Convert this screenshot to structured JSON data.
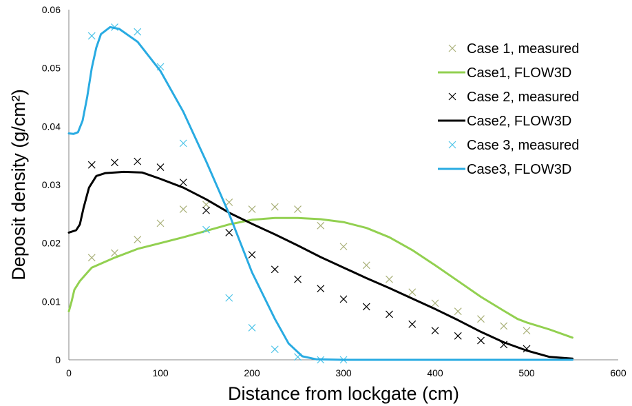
{
  "chart_data": {
    "type": "scatter",
    "xlabel": "Distance from lockgate (cm)",
    "ylabel": "Deposit density (g/cm²)",
    "xlim": [
      0,
      600
    ],
    "ylim": [
      0,
      0.06
    ],
    "x_ticks": [
      "0",
      "100",
      "200",
      "300",
      "400",
      "500",
      "600"
    ],
    "y_ticks": [
      "0",
      "0.01",
      "0.02",
      "0.03",
      "0.04",
      "0.05",
      "0.06"
    ],
    "grid": false,
    "legend_position": "top-right",
    "series": [
      {
        "name": "Case 1, measured",
        "kind": "marker",
        "marker": "x",
        "color": "#a9b078",
        "points": [
          [
            25,
            0.0175
          ],
          [
            50,
            0.0183
          ],
          [
            75,
            0.0206
          ],
          [
            100,
            0.0234
          ],
          [
            125,
            0.0258
          ],
          [
            150,
            0.0266
          ],
          [
            175,
            0.027
          ],
          [
            200,
            0.0258
          ],
          [
            225,
            0.0262
          ],
          [
            250,
            0.0258
          ],
          [
            275,
            0.023
          ],
          [
            300,
            0.0194
          ],
          [
            325,
            0.0162
          ],
          [
            350,
            0.0138
          ],
          [
            375,
            0.0116
          ],
          [
            400,
            0.0097
          ],
          [
            425,
            0.0083
          ],
          [
            450,
            0.007
          ],
          [
            475,
            0.0058
          ],
          [
            500,
            0.005
          ]
        ]
      },
      {
        "name": "Case1, FLOW3D",
        "kind": "line",
        "color": "#92d050",
        "points": [
          [
            0,
            0.0083
          ],
          [
            3,
            0.01
          ],
          [
            6,
            0.012
          ],
          [
            12,
            0.0135
          ],
          [
            25,
            0.0158
          ],
          [
            50,
            0.0175
          ],
          [
            75,
            0.019
          ],
          [
            100,
            0.02
          ],
          [
            125,
            0.021
          ],
          [
            150,
            0.0221
          ],
          [
            175,
            0.0232
          ],
          [
            200,
            0.024
          ],
          [
            225,
            0.0243
          ],
          [
            250,
            0.0243
          ],
          [
            275,
            0.0241
          ],
          [
            300,
            0.0236
          ],
          [
            325,
            0.0226
          ],
          [
            350,
            0.021
          ],
          [
            375,
            0.0188
          ],
          [
            400,
            0.0162
          ],
          [
            425,
            0.0135
          ],
          [
            450,
            0.0108
          ],
          [
            475,
            0.0084
          ],
          [
            490,
            0.007
          ],
          [
            500,
            0.0064
          ],
          [
            525,
            0.0052
          ],
          [
            550,
            0.0038
          ]
        ]
      },
      {
        "name": "Case 2, measured",
        "kind": "marker",
        "marker": "x",
        "color": "#000000",
        "points": [
          [
            25,
            0.0334
          ],
          [
            50,
            0.0338
          ],
          [
            75,
            0.034
          ],
          [
            100,
            0.033
          ],
          [
            125,
            0.0304
          ],
          [
            150,
            0.0256
          ],
          [
            175,
            0.0218
          ],
          [
            200,
            0.018
          ],
          [
            225,
            0.0155
          ],
          [
            250,
            0.0138
          ],
          [
            275,
            0.0122
          ],
          [
            300,
            0.0104
          ],
          [
            325,
            0.0091
          ],
          [
            350,
            0.0078
          ],
          [
            375,
            0.0061
          ],
          [
            400,
            0.005
          ],
          [
            425,
            0.0041
          ],
          [
            450,
            0.0033
          ],
          [
            475,
            0.0026
          ],
          [
            500,
            0.0019
          ]
        ]
      },
      {
        "name": "Case2, FLOW3D",
        "kind": "line",
        "color": "#000000",
        "points": [
          [
            0,
            0.0218
          ],
          [
            8,
            0.0222
          ],
          [
            12,
            0.0232
          ],
          [
            16,
            0.026
          ],
          [
            22,
            0.0295
          ],
          [
            30,
            0.0315
          ],
          [
            40,
            0.032
          ],
          [
            60,
            0.0322
          ],
          [
            80,
            0.0321
          ],
          [
            100,
            0.031
          ],
          [
            125,
            0.0295
          ],
          [
            150,
            0.0275
          ],
          [
            175,
            0.0252
          ],
          [
            200,
            0.0233
          ],
          [
            225,
            0.0215
          ],
          [
            250,
            0.0196
          ],
          [
            275,
            0.0176
          ],
          [
            300,
            0.0158
          ],
          [
            325,
            0.014
          ],
          [
            350,
            0.0123
          ],
          [
            375,
            0.0105
          ],
          [
            400,
            0.0087
          ],
          [
            425,
            0.0068
          ],
          [
            450,
            0.0048
          ],
          [
            475,
            0.003
          ],
          [
            500,
            0.0016
          ],
          [
            525,
            0.0005
          ],
          [
            550,
            0.0002
          ]
        ]
      },
      {
        "name": "Case 3, measured",
        "kind": "marker",
        "marker": "x",
        "color": "#4bc3e8",
        "points": [
          [
            25,
            0.0555
          ],
          [
            50,
            0.057
          ],
          [
            75,
            0.0562
          ],
          [
            100,
            0.0502
          ],
          [
            125,
            0.0371
          ],
          [
            150,
            0.0223
          ],
          [
            175,
            0.0106
          ],
          [
            200,
            0.0055
          ],
          [
            225,
            0.0018
          ],
          [
            250,
            0.0005
          ],
          [
            275,
            0.0
          ],
          [
            300,
            0.0
          ]
        ]
      },
      {
        "name": "Case3, FLOW3D",
        "kind": "line",
        "color": "#29abe2",
        "points": [
          [
            0,
            0.0388
          ],
          [
            5,
            0.0387
          ],
          [
            10,
            0.039
          ],
          [
            15,
            0.041
          ],
          [
            20,
            0.045
          ],
          [
            25,
            0.05
          ],
          [
            30,
            0.0535
          ],
          [
            35,
            0.0558
          ],
          [
            45,
            0.057
          ],
          [
            55,
            0.0567
          ],
          [
            75,
            0.0545
          ],
          [
            100,
            0.0495
          ],
          [
            125,
            0.0425
          ],
          [
            150,
            0.034
          ],
          [
            175,
            0.025
          ],
          [
            200,
            0.015
          ],
          [
            225,
            0.007
          ],
          [
            240,
            0.0028
          ],
          [
            255,
            0.0006
          ],
          [
            270,
            0.0001
          ],
          [
            300,
            0.0
          ],
          [
            400,
            0.0
          ],
          [
            500,
            0.0
          ],
          [
            550,
            0.0
          ]
        ]
      }
    ]
  }
}
